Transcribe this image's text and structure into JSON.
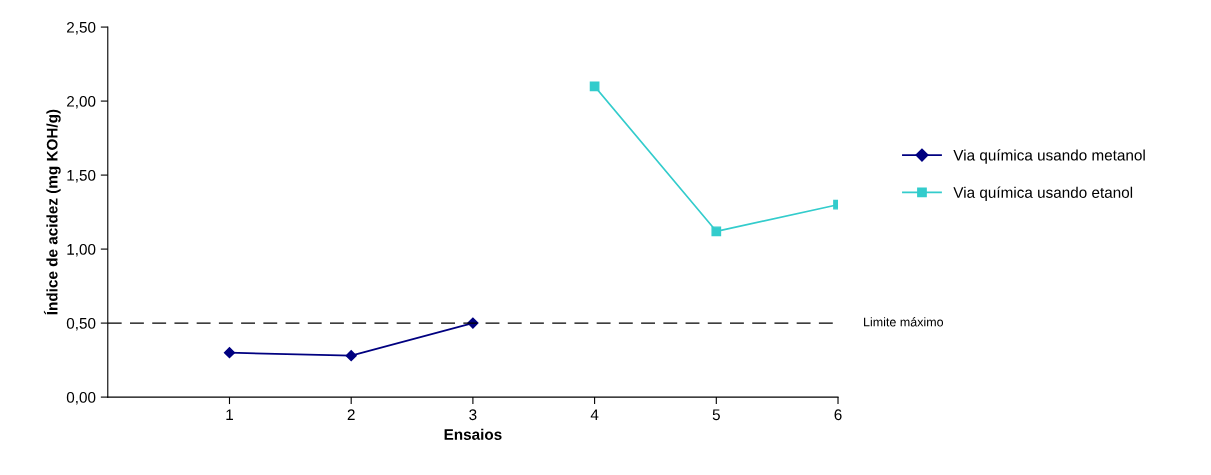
{
  "chart_data": {
    "type": "line",
    "xlabel": "Ensaios",
    "ylabel": "Índice de acidez (mg KOH/g)",
    "xlim": [
      0,
      6
    ],
    "xticks": [
      1,
      2,
      3,
      4,
      5,
      6
    ],
    "ylim": [
      0,
      2.5
    ],
    "yticks": [
      {
        "value": 0,
        "label": "0,00"
      },
      {
        "value": 0.5,
        "label": "0,50"
      },
      {
        "value": 1,
        "label": "1,00"
      },
      {
        "value": 1.5,
        "label": "1,50"
      },
      {
        "value": 2,
        "label": "2,00"
      },
      {
        "value": 2.5,
        "label": "2,50"
      }
    ],
    "series": [
      {
        "name": "Via química usando metanol",
        "color": "#000080",
        "marker": "diamond",
        "x": [
          1,
          2,
          3
        ],
        "values": [
          0.3,
          0.28,
          0.5
        ]
      },
      {
        "name": "Via química usando etanol",
        "color": "#33cccc",
        "marker": "square",
        "x": [
          4,
          5,
          6
        ],
        "values": [
          2.1,
          1.12,
          1.3
        ]
      }
    ],
    "ref_lines": [
      {
        "axis": "y",
        "value": 0.5,
        "label": "Limite máximo",
        "color": "#000000",
        "line_style": "dashed"
      }
    ],
    "grid": false,
    "legend": "right"
  }
}
